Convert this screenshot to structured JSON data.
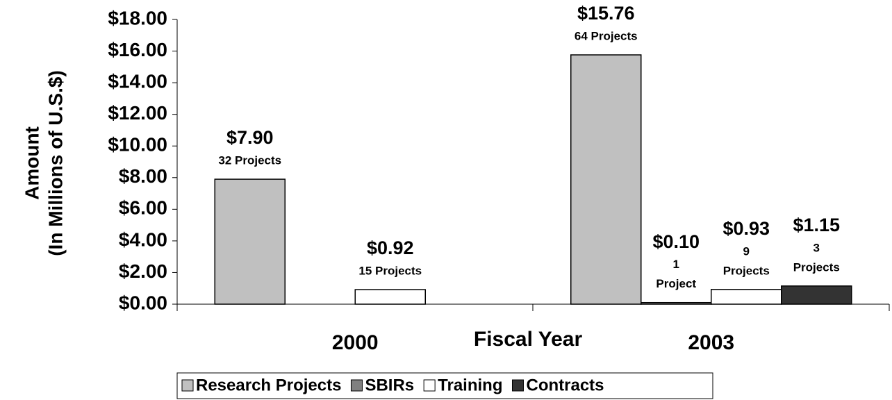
{
  "chart_data": {
    "type": "bar",
    "x_label": "Fiscal Year",
    "y_label": [
      "Amount",
      "(In Millions of U.S.$)"
    ],
    "categories": [
      "2000",
      "2003"
    ],
    "series": [
      {
        "name": "Research Projects",
        "color": "#c0c0c0",
        "values": [
          7.9,
          15.76
        ],
        "value_labels": [
          "$7.90",
          "$15.76"
        ],
        "project_labels": [
          [
            "32 Projects"
          ],
          [
            "64 Projects"
          ]
        ]
      },
      {
        "name": "SBIRs",
        "color": "#808080",
        "values": [
          null,
          0.1
        ],
        "value_labels": [
          null,
          "$0.10"
        ],
        "project_labels": [
          null,
          [
            "1",
            "Project"
          ]
        ]
      },
      {
        "name": "Training",
        "color": "#ffffff",
        "values": [
          0.92,
          0.93
        ],
        "value_labels": [
          "$0.92",
          "$0.93"
        ],
        "project_labels": [
          [
            "15 Projects"
          ],
          [
            "9",
            "Projects"
          ]
        ]
      },
      {
        "name": "Contracts",
        "color": "#333333",
        "values": [
          null,
          1.15
        ],
        "value_labels": [
          null,
          "$1.15"
        ],
        "project_labels": [
          null,
          [
            "3",
            "Projects"
          ]
        ]
      }
    ],
    "ylim": [
      0,
      18
    ],
    "yticks": [
      {
        "value": 0,
        "label": "$0.00"
      },
      {
        "value": 2,
        "label": "$2.00"
      },
      {
        "value": 4,
        "label": "$4.00"
      },
      {
        "value": 6,
        "label": "$6.00"
      },
      {
        "value": 8,
        "label": "$8.00"
      },
      {
        "value": 10,
        "label": "$10.00"
      },
      {
        "value": 12,
        "label": "$12.00"
      },
      {
        "value": 14,
        "label": "$14.00"
      },
      {
        "value": 16,
        "label": "$16.00"
      },
      {
        "value": 18,
        "label": "$18.00"
      }
    ],
    "legend": "bottom"
  }
}
